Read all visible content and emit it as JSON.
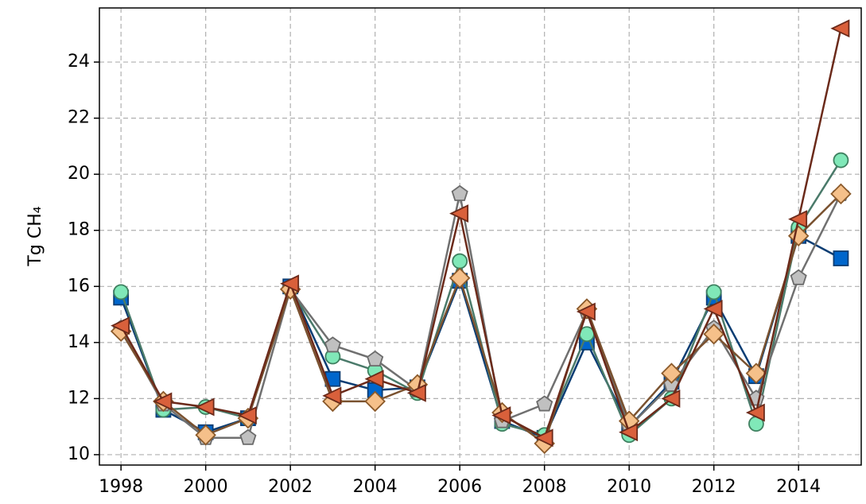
{
  "chart_data": {
    "type": "line",
    "y_label": "Tg CH₄",
    "x": [
      1998,
      1999,
      2000,
      2001,
      2002,
      2003,
      2004,
      2005,
      2006,
      2007,
      2008,
      2009,
      2010,
      2011,
      2012,
      2013,
      2014,
      2015
    ],
    "xlim": [
      1997.49,
      2015.48
    ],
    "xticks": [
      1998,
      2000,
      2002,
      2004,
      2006,
      2008,
      2010,
      2012,
      2014
    ],
    "ylim": [
      9.63,
      25.93
    ],
    "yticks": [
      10,
      12,
      14,
      16,
      18,
      20,
      22,
      24
    ],
    "grid": true,
    "series": [
      {
        "color": "#0066cc",
        "line_color": "#0b3d73",
        "edge_color": "#0b3d73",
        "marker": "square",
        "values": [
          15.6,
          11.6,
          10.8,
          11.3,
          16.0,
          12.7,
          12.3,
          12.4,
          16.2,
          11.2,
          10.6,
          14.0,
          11.0,
          12.6,
          15.6,
          12.8,
          17.8,
          17.0
        ]
      },
      {
        "color": "#80e8b8",
        "line_color": "#4a7a6a",
        "edge_color": "#3f8060",
        "marker": "circle",
        "values": [
          15.8,
          11.6,
          11.7,
          11.3,
          15.9,
          13.5,
          13.0,
          12.2,
          16.9,
          11.1,
          10.7,
          14.3,
          10.7,
          12.0,
          15.8,
          11.1,
          18.1,
          20.5
        ]
      },
      {
        "color": "#c0c0c0",
        "line_color": "#707070",
        "edge_color": "#6b6b6b",
        "marker": "pentagon",
        "values": [
          14.5,
          11.8,
          10.6,
          10.6,
          15.9,
          13.9,
          13.4,
          12.3,
          19.3,
          11.2,
          11.8,
          15.1,
          11.0,
          12.5,
          14.5,
          12.0,
          16.3,
          19.3
        ]
      },
      {
        "color": "#f5c08a",
        "line_color": "#7a5230",
        "edge_color": "#8b5a2b",
        "marker": "diamond",
        "values": [
          14.4,
          11.9,
          10.7,
          11.3,
          15.9,
          11.9,
          11.9,
          12.5,
          16.3,
          11.5,
          10.4,
          15.2,
          11.2,
          12.9,
          14.3,
          12.9,
          17.8,
          19.3
        ]
      },
      {
        "color": "#d9603b",
        "line_color": "#6b2a1a",
        "edge_color": "#6b2a1a",
        "marker": "triangle-left",
        "values": [
          14.6,
          11.9,
          11.7,
          11.4,
          16.1,
          12.1,
          12.7,
          12.2,
          18.6,
          11.4,
          10.6,
          15.1,
          10.8,
          12.0,
          15.2,
          11.5,
          18.4,
          25.2
        ]
      }
    ]
  }
}
